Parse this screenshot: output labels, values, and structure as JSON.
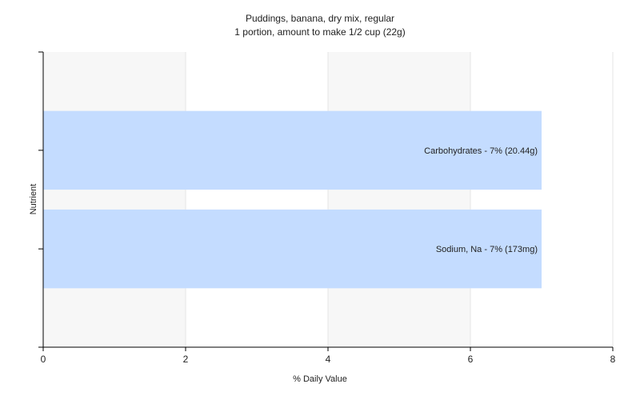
{
  "chart_data": {
    "type": "bar",
    "orientation": "horizontal",
    "title": "Puddings, banana, dry mix, regular",
    "subtitle": "1 portion, amount to make 1/2 cup (22g)",
    "xlabel": "% Daily Value",
    "ylabel": "Nutrient",
    "xlim": [
      0,
      8
    ],
    "x_ticks": [
      "0",
      "2",
      "4",
      "6",
      "8"
    ],
    "grid": true,
    "categories": [
      "Carbohydrates",
      "Sodium, Na"
    ],
    "values": [
      7,
      7
    ],
    "data_labels": [
      "Carbohydrates - 7% (20.44g)",
      "Sodium, Na - 7% (173mg)"
    ],
    "colors": {
      "bar": "#c4dcff",
      "grid": "#e6e6e6",
      "axis": "#000000",
      "plot_bg_alt": "#f7f7f7"
    }
  }
}
